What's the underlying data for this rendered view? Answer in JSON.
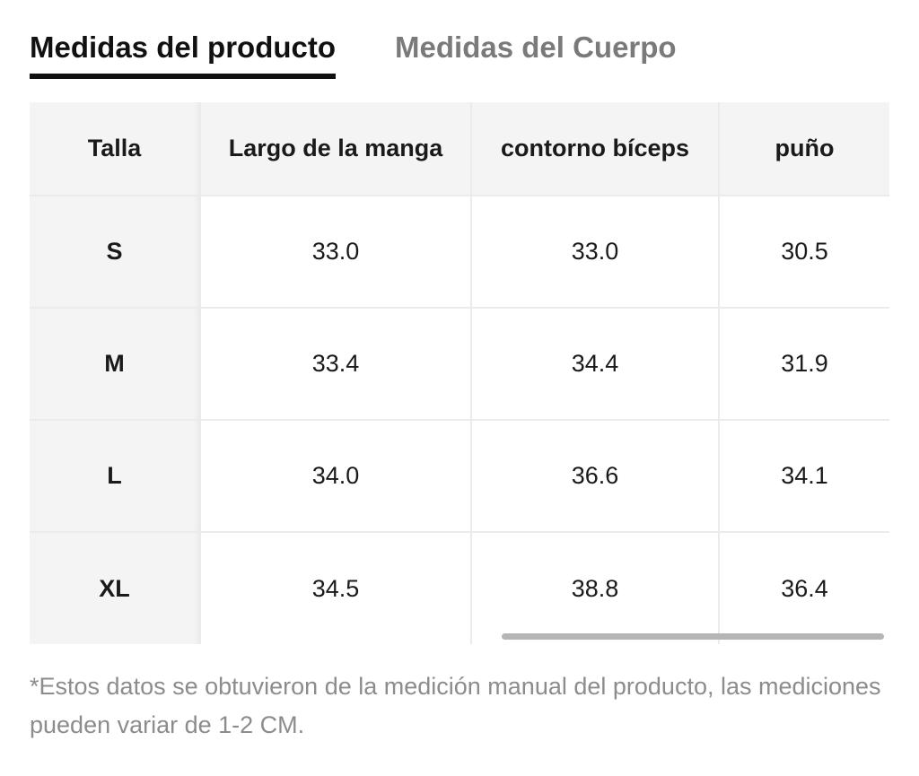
{
  "tabs": [
    {
      "label": "Medidas del producto",
      "active": true
    },
    {
      "label": "Medidas del Cuerpo",
      "active": false
    }
  ],
  "table": {
    "headers": [
      "Talla",
      "Largo de la manga",
      "contorno bíceps",
      "puño"
    ],
    "rows": [
      [
        "S",
        "33.0",
        "33.0",
        "30.5"
      ],
      [
        "M",
        "33.4",
        "34.4",
        "31.9"
      ],
      [
        "L",
        "34.0",
        "36.6",
        "34.1"
      ],
      [
        "XL",
        "34.5",
        "38.8",
        "36.4"
      ]
    ]
  },
  "note": "*Estos datos se obtuvieron de la medición manual del producto, las mediciones pueden variar de 1-2 CM.",
  "colors": {
    "active_tab": "#111111",
    "inactive_tab": "#7a7a7a",
    "header_bg": "#f4f4f4",
    "note_text": "#8c8c8c",
    "scrollbar": "#b5b5b5"
  }
}
